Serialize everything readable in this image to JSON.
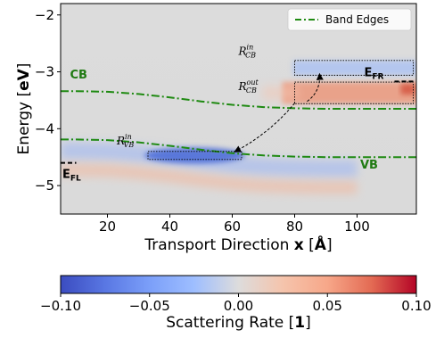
{
  "chart_data": [
    {
      "type": "heatmap",
      "title": "",
      "xlabel": {
        "prefix": "Transport Direction ",
        "bold": "x",
        "suffix": " [",
        "unit": "Å",
        "close": "]"
      },
      "ylabel": {
        "prefix": "Energy [",
        "unit": "eV",
        "close": "]"
      },
      "xlim": [
        5,
        119
      ],
      "ylim": [
        -5.5,
        -1.8
      ],
      "xticks": [
        20,
        40,
        60,
        80,
        100
      ],
      "yticks": [
        -2,
        -3,
        -4,
        -5
      ],
      "xtick_labels": [
        "20",
        "40",
        "60",
        "80",
        "100"
      ],
      "ytick_labels": [
        "−2",
        "−3",
        "−4",
        "−5"
      ],
      "grid": false,
      "legend": {
        "position": "top-right",
        "entries": [
          {
            "name": "Band Edges",
            "color": "#1f8a12",
            "style": "dash-dot"
          }
        ]
      },
      "series": [
        {
          "name": "Band Edges",
          "role": "CB",
          "x": [
            5,
            10,
            20,
            30,
            40,
            50,
            60,
            70,
            80,
            90,
            100,
            110,
            119
          ],
          "y": [
            -3.34,
            -3.34,
            -3.35,
            -3.39,
            -3.45,
            -3.52,
            -3.58,
            -3.62,
            -3.64,
            -3.65,
            -3.65,
            -3.65,
            -3.65
          ]
        },
        {
          "name": "Band Edges",
          "role": "VB",
          "x": [
            5,
            10,
            20,
            30,
            40,
            50,
            60,
            70,
            80,
            90,
            100,
            110,
            119
          ],
          "y": [
            -4.19,
            -4.19,
            -4.2,
            -4.24,
            -4.3,
            -4.37,
            -4.43,
            -4.47,
            -4.49,
            -4.5,
            -4.5,
            -4.5,
            -4.5
          ]
        }
      ],
      "fermi_levels": [
        {
          "label_main": "E",
          "label_sub": "FL",
          "x": [
            5,
            10
          ],
          "y": -4.6
        },
        {
          "label_main": "E",
          "label_sub": "FR",
          "x": [
            112,
            119
          ],
          "y": -3.17
        }
      ],
      "band_labels": [
        {
          "text": "CB",
          "x": 8,
          "y": -3.12
        },
        {
          "text": "VB",
          "x": 101,
          "y": -4.7
        }
      ],
      "regions": [
        {
          "label_main": "R",
          "label_sub": "VB",
          "label_sup": "in",
          "x": [
            33,
            63
          ],
          "y": [
            -4.54,
            -4.4
          ],
          "label_at": [
            23,
            -4.28
          ],
          "sign": "negative"
        },
        {
          "label_main": "R",
          "label_sub": "CB",
          "label_sup": "out",
          "x": [
            80,
            118
          ],
          "y": [
            -3.56,
            -3.18
          ],
          "label_at": [
            62,
            -3.32
          ],
          "sign": "positive"
        },
        {
          "label_main": "R",
          "label_sub": "CB",
          "label_sup": "in",
          "x": [
            80,
            118
          ],
          "y": [
            -3.06,
            -2.8
          ],
          "label_at": [
            62,
            -2.7
          ],
          "sign": "negative"
        }
      ],
      "arrows": [
        {
          "from": [
            80,
            -3.55
          ],
          "to": [
            61,
            -4.4
          ],
          "style": "dashed"
        },
        {
          "from": [
            84,
            -3.52
          ],
          "to": [
            88,
            -3.05
          ],
          "style": "dashed"
        }
      ],
      "color_scale": {
        "low": -0.1,
        "high": 0.1,
        "colormap": "coolwarm"
      }
    },
    {
      "type": "colorbar",
      "xlabel": {
        "prefix": "Scattering Rate [",
        "bold": "1",
        "close": "]"
      },
      "range": [
        -0.1,
        0.1
      ],
      "ticks": [
        -0.1,
        -0.05,
        0.0,
        0.05,
        0.1
      ],
      "tick_labels": [
        "−0.10",
        "−0.05",
        "0.00",
        "0.05",
        "0.10"
      ],
      "colormap": "coolwarm"
    }
  ]
}
